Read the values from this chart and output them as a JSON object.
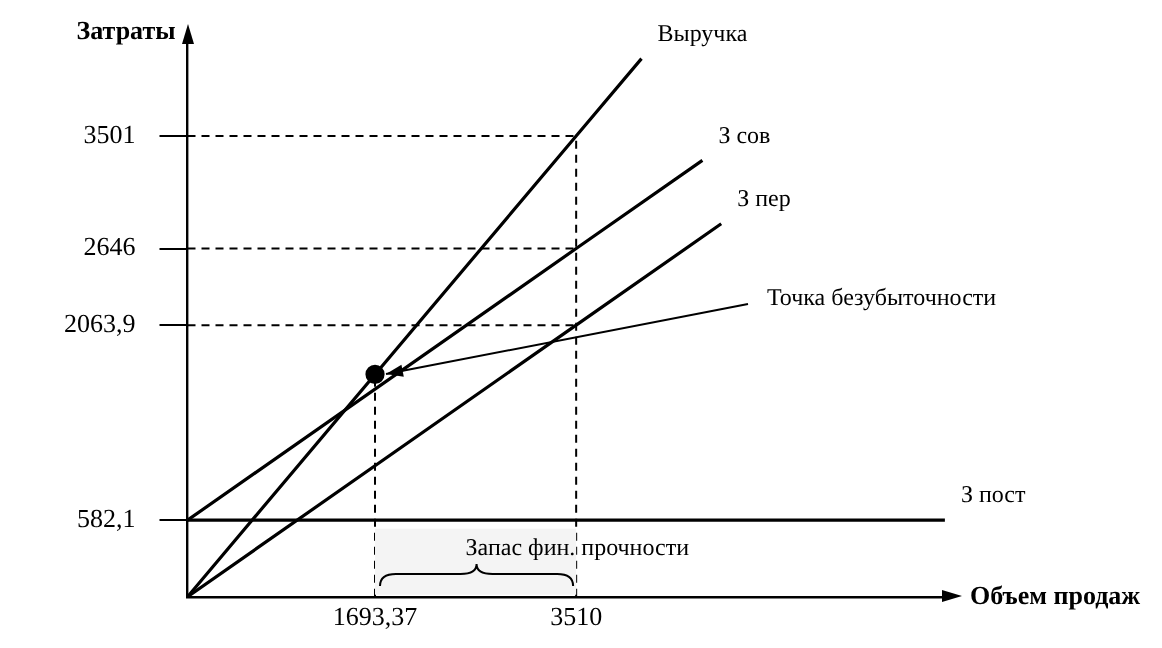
{
  "chart_data": {
    "type": "line",
    "xlabel": "Объем продаж",
    "ylabel": "Затраты",
    "xlim": [
      0,
      6850
    ],
    "ylim": [
      0,
      4200
    ],
    "xticks": [
      {
        "value": 1693.37,
        "label": "1693,37"
      },
      3510
    ],
    "yticks": [
      {
        "value": 582.1,
        "label": "582,1"
      },
      {
        "value": 2063.9,
        "label": "2063,9"
      },
      2646,
      3501
    ],
    "series": [
      {
        "name": "Выручка",
        "color": "#000000",
        "x": [
          0,
          3510,
          4100
        ],
        "values": [
          0,
          3501,
          4089
        ]
      },
      {
        "name": "З сов",
        "color": "#000000",
        "x": [
          0,
          3510,
          4650
        ],
        "values": [
          582.1,
          2646,
          3316
        ]
      },
      {
        "name": "З пер",
        "color": "#000000",
        "x": [
          0,
          3510,
          4820
        ],
        "values": [
          0,
          2063.9,
          2834
        ]
      },
      {
        "name": "З пост",
        "color": "#000000",
        "x": [
          0,
          6840
        ],
        "values": [
          582.1,
          582.1
        ]
      },
      {
        "type": "scatter",
        "color": "#000000",
        "marker": "circle",
        "x": [
          1693.37
        ],
        "values": [
          1690
        ]
      }
    ],
    "ref_lines": [
      {
        "axis": "y",
        "value": 3501,
        "line_style": "dashed"
      },
      {
        "axis": "y",
        "value": 2646,
        "line_style": "dashed"
      },
      {
        "axis": "y",
        "value": 2063.9,
        "line_style": "dashed"
      },
      {
        "axis": "x",
        "value": 1693.37,
        "line_style": "dashed"
      },
      {
        "axis": "x",
        "value": 3510,
        "line_style": "dashed"
      }
    ],
    "bands": [
      {
        "axis": "x",
        "from": 1693.37,
        "to": 3510,
        "label": "Запас фин. прочности",
        "color": "#f4f4f4"
      }
    ],
    "annotations": [
      {
        "text": "Точка безубыточности",
        "x": 1693.37,
        "y": 1690
      }
    ],
    "marker": "none",
    "line_style": "solid",
    "legend": false,
    "grid": false
  }
}
